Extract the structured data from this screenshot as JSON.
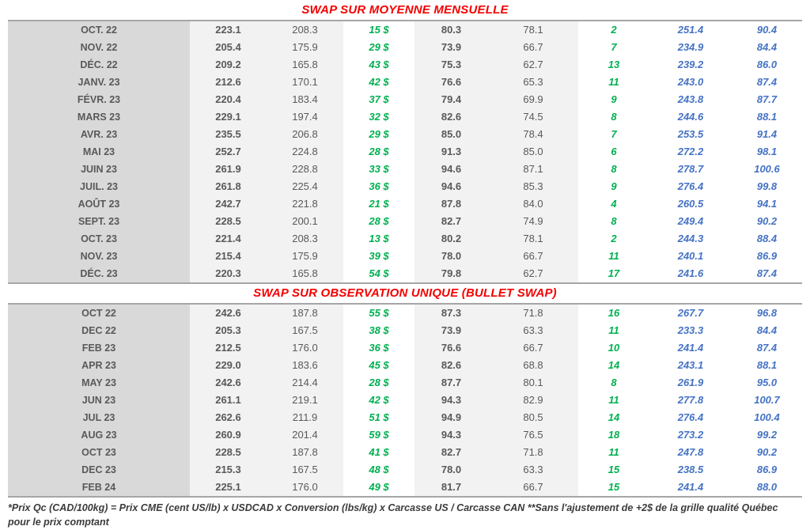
{
  "colors": {
    "title_red": "#f40000",
    "positive_green": "#00b050",
    "forward_blue": "#4472c4",
    "text_gray": "#595959",
    "month_band_gray": "#d9d9d9",
    "value_band_gray": "#f2f2f2",
    "rule_gray": "#a6a6a6"
  },
  "tables": [
    {
      "title": "SWAP SUR MOYENNE MENSUELLE",
      "rows": [
        {
          "month": "OCT. 22",
          "cells": [
            "223.1",
            "208.3",
            "15 $",
            "80.3",
            "78.1",
            "2",
            "251.4",
            "90.4"
          ]
        },
        {
          "month": "NOV. 22",
          "cells": [
            "205.4",
            "175.9",
            "29 $",
            "73.9",
            "66.7",
            "7",
            "234.9",
            "84.4"
          ]
        },
        {
          "month": "DÉC. 22",
          "cells": [
            "209.2",
            "165.8",
            "43 $",
            "75.3",
            "62.7",
            "13",
            "239.2",
            "86.0"
          ]
        },
        {
          "month": "JANV. 23",
          "cells": [
            "212.6",
            "170.1",
            "42 $",
            "76.6",
            "65.3",
            "11",
            "243.0",
            "87.4"
          ]
        },
        {
          "month": "FÉVR. 23",
          "cells": [
            "220.4",
            "183.4",
            "37 $",
            "79.4",
            "69.9",
            "9",
            "243.8",
            "87.7"
          ]
        },
        {
          "month": "MARS 23",
          "cells": [
            "229.1",
            "197.4",
            "32 $",
            "82.6",
            "74.5",
            "8",
            "244.6",
            "88.1"
          ]
        },
        {
          "month": "AVR. 23",
          "cells": [
            "235.5",
            "206.8",
            "29 $",
            "85.0",
            "78.4",
            "7",
            "253.5",
            "91.4"
          ]
        },
        {
          "month": "MAI 23",
          "cells": [
            "252.7",
            "224.8",
            "28 $",
            "91.3",
            "85.0",
            "6",
            "272.2",
            "98.1"
          ]
        },
        {
          "month": "JUIN 23",
          "cells": [
            "261.9",
            "228.8",
            "33 $",
            "94.6",
            "87.1",
            "8",
            "278.7",
            "100.6"
          ]
        },
        {
          "month": "JUIL. 23",
          "cells": [
            "261.8",
            "225.4",
            "36 $",
            "94.6",
            "85.3",
            "9",
            "276.4",
            "99.8"
          ]
        },
        {
          "month": "AOÛT 23",
          "cells": [
            "242.7",
            "221.8",
            "21 $",
            "87.8",
            "84.0",
            "4",
            "260.5",
            "94.1"
          ]
        },
        {
          "month": "SEPT. 23",
          "cells": [
            "228.5",
            "200.1",
            "28 $",
            "82.7",
            "74.9",
            "8",
            "249.4",
            "90.2"
          ]
        },
        {
          "month": "OCT. 23",
          "cells": [
            "221.4",
            "208.3",
            "13 $",
            "80.2",
            "78.1",
            "2",
            "244.3",
            "88.4"
          ]
        },
        {
          "month": "NOV. 23",
          "cells": [
            "215.4",
            "175.9",
            "39 $",
            "78.0",
            "66.7",
            "11",
            "240.1",
            "86.9"
          ]
        },
        {
          "month": "DÉC. 23",
          "cells": [
            "220.3",
            "165.8",
            "54 $",
            "79.8",
            "62.7",
            "17",
            "241.6",
            "87.4"
          ]
        }
      ]
    },
    {
      "title": "SWAP SUR OBSERVATION UNIQUE (BULLET SWAP)",
      "rows": [
        {
          "month": "OCT 22",
          "cells": [
            "242.6",
            "187.8",
            "55 $",
            "87.3",
            "71.8",
            "16",
            "267.7",
            "96.8"
          ]
        },
        {
          "month": "DEC 22",
          "cells": [
            "205.3",
            "167.5",
            "38 $",
            "73.9",
            "63.3",
            "11",
            "233.3",
            "84.4"
          ]
        },
        {
          "month": "FEB 23",
          "cells": [
            "212.5",
            "176.0",
            "36 $",
            "76.6",
            "66.7",
            "10",
            "241.4",
            "87.4"
          ]
        },
        {
          "month": "APR 23",
          "cells": [
            "229.0",
            "183.6",
            "45 $",
            "82.6",
            "68.8",
            "14",
            "243.1",
            "88.1"
          ]
        },
        {
          "month": "MAY 23",
          "cells": [
            "242.6",
            "214.4",
            "28 $",
            "87.7",
            "80.1",
            "8",
            "261.9",
            "95.0"
          ]
        },
        {
          "month": "JUN 23",
          "cells": [
            "261.1",
            "219.1",
            "42 $",
            "94.3",
            "82.9",
            "11",
            "277.8",
            "100.7"
          ]
        },
        {
          "month": "JUL 23",
          "cells": [
            "262.6",
            "211.9",
            "51 $",
            "94.9",
            "80.5",
            "14",
            "276.4",
            "100.4"
          ]
        },
        {
          "month": "AUG 23",
          "cells": [
            "260.9",
            "201.4",
            "59 $",
            "94.3",
            "76.5",
            "18",
            "273.2",
            "99.2"
          ]
        },
        {
          "month": "OCT 23",
          "cells": [
            "228.5",
            "187.8",
            "41 $",
            "82.7",
            "71.8",
            "11",
            "247.8",
            "90.2"
          ]
        },
        {
          "month": "DEC 23",
          "cells": [
            "215.3",
            "167.5",
            "48 $",
            "78.0",
            "63.3",
            "15",
            "238.5",
            "86.9"
          ]
        },
        {
          "month": "FEB 24",
          "cells": [
            "225.1",
            "176.0",
            "49 $",
            "81.7",
            "66.7",
            "15",
            "241.4",
            "88.0"
          ]
        }
      ]
    }
  ],
  "footnote": "*Prix Qc (CAD/100kg) = Prix CME (cent US/lb) x USDCAD x Conversion (lbs/kg) x Carcasse US / Carcasse CAN **Sans l'ajustement de +2$ de la grille qualité Québec pour le prix comptant"
}
